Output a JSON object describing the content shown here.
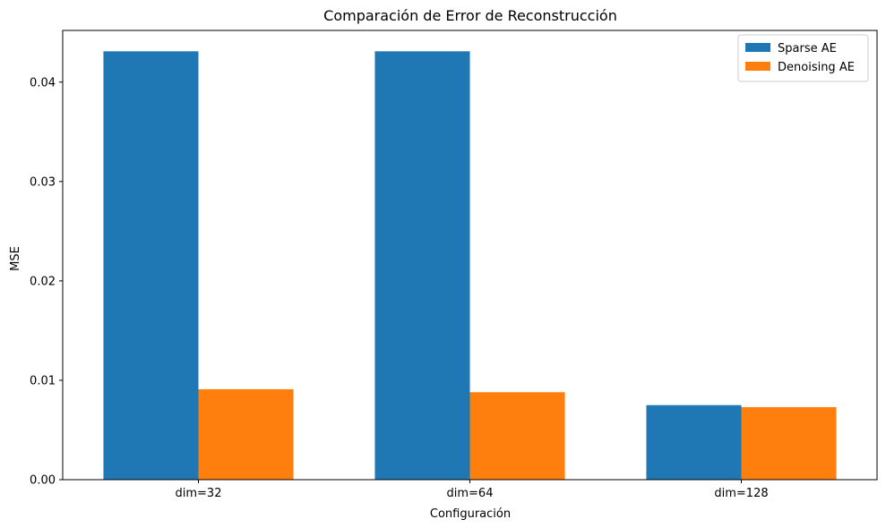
{
  "chart_data": {
    "type": "bar",
    "title": "Comparación de Error de Reconstrucción",
    "xlabel": "Configuración",
    "ylabel": "MSE",
    "categories": [
      "dim=32",
      "dim=64",
      "dim=128"
    ],
    "series": [
      {
        "name": "Sparse AE",
        "color": "#1f77b4",
        "values": [
          0.0431,
          0.0431,
          0.0075
        ]
      },
      {
        "name": "Denoising AE",
        "color": "#ff7f0e",
        "values": [
          0.0091,
          0.0088,
          0.0073
        ]
      }
    ],
    "ylim": [
      0,
      0.0452
    ],
    "yticks": [
      0.0,
      0.01,
      0.02,
      0.03,
      0.04
    ],
    "ytick_labels": [
      "0.00",
      "0.01",
      "0.02",
      "0.03",
      "0.04"
    ],
    "grid": false,
    "legend_position": "top-right"
  }
}
